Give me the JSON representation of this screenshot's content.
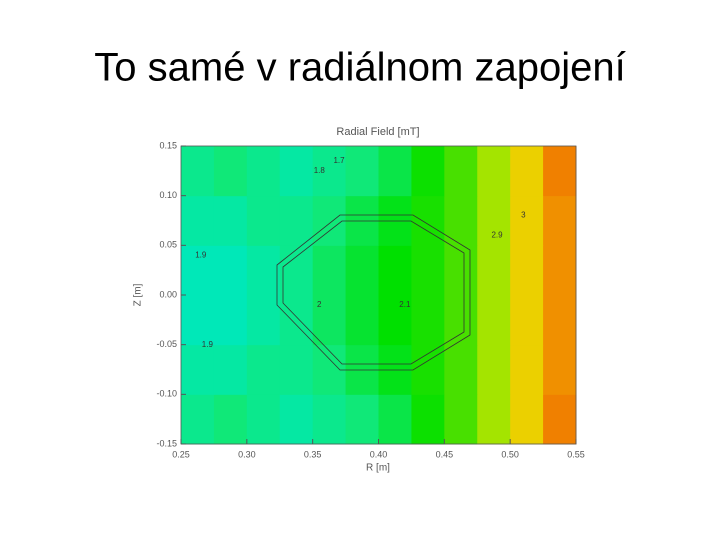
{
  "slide_title": "To samé v radiálnom zapojení",
  "chart_data": {
    "type": "heatmap",
    "title": "Radial Field [mT]",
    "x_label": "R [m]",
    "y_label": "Z [m]",
    "x_edges": [
      0.25,
      0.275,
      0.3,
      0.325,
      0.35,
      0.375,
      0.4,
      0.425,
      0.45,
      0.475,
      0.5,
      0.525,
      0.55
    ],
    "y_edges": [
      -0.15,
      -0.1,
      -0.05,
      0,
      0.05,
      0.1,
      0.15
    ],
    "z": [
      [
        1.9,
        1.95,
        1.9,
        1.85,
        1.9,
        1.95,
        2.05,
        2.25,
        2.5,
        2.8,
        3.1,
        3.5
      ],
      [
        1.85,
        1.85,
        1.9,
        1.9,
        1.95,
        2.05,
        2.15,
        2.3,
        2.5,
        2.8,
        3.1,
        3.4
      ],
      [
        1.8,
        1.8,
        1.85,
        1.9,
        2.0,
        2.1,
        2.2,
        2.3,
        2.5,
        2.8,
        3.1,
        3.4
      ],
      [
        1.8,
        1.8,
        1.85,
        1.9,
        2.0,
        2.1,
        2.2,
        2.3,
        2.5,
        2.8,
        3.1,
        3.4
      ],
      [
        1.85,
        1.85,
        1.9,
        1.9,
        1.95,
        2.05,
        2.15,
        2.3,
        2.5,
        2.8,
        3.1,
        3.4
      ],
      [
        1.9,
        1.95,
        1.9,
        1.85,
        1.9,
        1.95,
        2.05,
        2.25,
        2.5,
        2.8,
        3.1,
        3.5
      ]
    ],
    "colormap": [
      [
        1.8,
        "#00e8b8"
      ],
      [
        1.95,
        "#10e878"
      ],
      [
        2.2,
        "#00e000"
      ],
      [
        2.6,
        "#60e000"
      ],
      [
        3.0,
        "#e8e800"
      ],
      [
        3.3,
        "#f0a000"
      ],
      [
        3.5,
        "#f08000"
      ]
    ],
    "contour_labels": [
      {
        "level": 1.7,
        "x": 0.37,
        "y": 0.135
      },
      {
        "level": 1.8,
        "x": 0.355,
        "y": 0.125
      },
      {
        "level": 1.9,
        "x": 0.265,
        "y": 0.04
      },
      {
        "level": 2.0,
        "x": 0.355,
        "y": -0.01
      },
      {
        "level": 2.1,
        "x": 0.42,
        "y": -0.01
      },
      {
        "level": 1.9,
        "x": 0.27,
        "y": -0.05
      },
      {
        "level": 2.9,
        "x": 0.49,
        "y": 0.06
      },
      {
        "level": 3.0,
        "x": 0.51,
        "y": 0.08
      }
    ],
    "xlim": [
      0.25,
      0.55
    ],
    "ylim": [
      -0.15,
      0.15
    ],
    "xticks": [
      {
        "value": 0.25,
        "label": "0.25"
      },
      {
        "value": 0.3,
        "label": "0.30"
      },
      {
        "value": 0.35,
        "label": "0.35"
      },
      {
        "value": 0.4,
        "label": "0.40"
      },
      {
        "value": 0.45,
        "label": "0.45"
      },
      {
        "value": 0.5,
        "label": "0.50"
      },
      {
        "value": 0.55,
        "label": "0.55"
      }
    ],
    "yticks": [
      {
        "value": -0.15,
        "label": "-0.15"
      },
      {
        "value": -0.1,
        "label": "-0.10"
      },
      {
        "value": -0.05,
        "label": "-0.05"
      },
      {
        "value": 0,
        "label": "0.00"
      },
      {
        "value": 0.05,
        "label": "0.05"
      },
      {
        "value": 0.1,
        "label": "0.10"
      },
      {
        "value": 0.15,
        "label": "0.15"
      }
    ]
  }
}
